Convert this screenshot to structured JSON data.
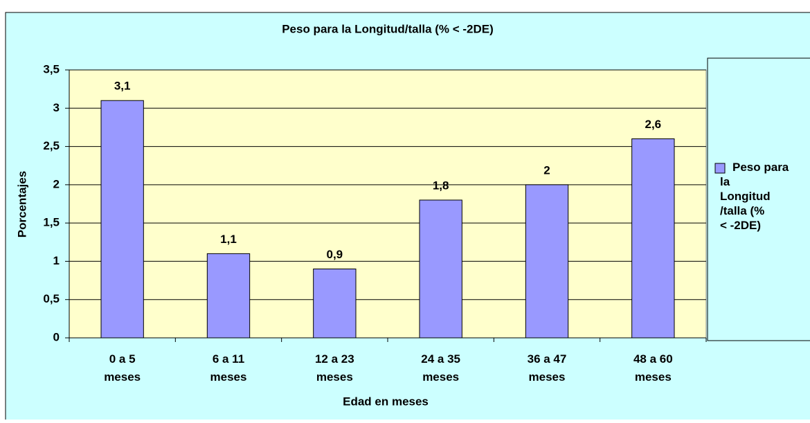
{
  "chart_data": {
    "type": "bar",
    "title": "Peso para la Longitud/talla (% < -2DE)",
    "x_label": "Edad en meses",
    "y_label": "Porcentajes",
    "categories": [
      "0 a 5 meses",
      "6 a 11 meses",
      "12 a 23 meses",
      "24 a 35 meses",
      "36 a 47 meses",
      "48 a 60 meses"
    ],
    "series": [
      {
        "name": "Peso para la Longitud/talla (% < -2DE)",
        "color": "#9999ff",
        "values": [
          3.1,
          1.1,
          0.9,
          1.8,
          2,
          2.6
        ],
        "value_labels": [
          "3,1",
          "1,1",
          "0,9",
          "1,8",
          "2",
          "2,6"
        ]
      }
    ],
    "ylim": [
      0,
      3.5
    ],
    "yticks": [
      0,
      {
        "value": 0.5,
        "label": "0,5"
      },
      1,
      {
        "value": 1.5,
        "label": "1,5"
      },
      2,
      {
        "value": 2.5,
        "label": "2,5"
      },
      3,
      {
        "value": 3.5,
        "label": "3,5"
      }
    ],
    "grid": true,
    "legend": "right"
  }
}
